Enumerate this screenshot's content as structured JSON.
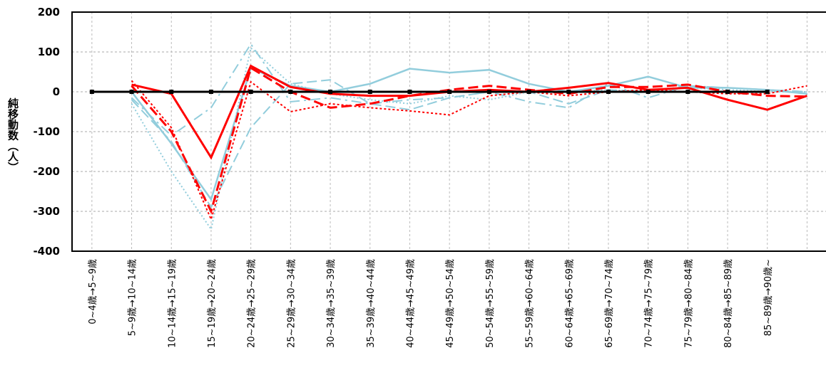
{
  "chart_data": {
    "type": "line",
    "y_label": "純移動数（人）",
    "categories": [
      "0~4歳→5~9歳",
      "5~9歳→10~14歳",
      "10~14歳→15~19歳",
      "15~19歳→20~24歳",
      "20~24歳→25~29歳",
      "25~29歳→30~34歳",
      "30~34歳→35~39歳",
      "35~39歳→40~44歳",
      "40~44歳→45~49歳",
      "45~49歳→50~54歳",
      "50~54歳→55~59歳",
      "55~59歳→60~64歳",
      "60~64歳→65~69歳",
      "65~69歳→70~74歳",
      "70~74歳→75~79歳",
      "75~79歳→80~84歳",
      "80~84歳→85~89歳",
      "85~89歳→90歳~",
      null
    ],
    "ylim": [
      -400,
      200
    ],
    "yticks": [
      -400,
      -300,
      -200,
      -100,
      0,
      100,
      200
    ],
    "grid": true,
    "series": [
      {
        "color": "#92cddc",
        "dash": "2,3",
        "width": 2,
        "values": [
          null,
          -30,
          -200,
          -345,
          110,
          20,
          -5,
          -20,
          -30,
          -10,
          -20,
          0,
          0,
          5,
          0,
          10,
          5,
          0,
          0
        ]
      },
      {
        "color": "#92cddc",
        "dash": "14,6,3,6",
        "width": 2,
        "values": [
          null,
          -15,
          -110,
          -40,
          120,
          -25,
          -15,
          -30,
          -20,
          -15,
          0,
          -25,
          -40,
          20,
          -15,
          15,
          10,
          5,
          0
        ]
      },
      {
        "color": "#92cddc",
        "dash": "14,6",
        "width": 2,
        "values": [
          null,
          -20,
          -125,
          -290,
          -90,
          20,
          30,
          -30,
          -45,
          -15,
          0,
          0,
          -30,
          5,
          0,
          15,
          10,
          5,
          0
        ]
      },
      {
        "color": "#92cddc",
        "dash": "",
        "width": 2.5,
        "values": [
          null,
          0,
          -130,
          -270,
          60,
          15,
          0,
          20,
          58,
          48,
          55,
          20,
          0,
          15,
          38,
          10,
          10,
          5,
          -5
        ]
      },
      {
        "color": "#ff0000",
        "dash": "3,3",
        "width": 2,
        "values": [
          null,
          28,
          -90,
          -320,
          25,
          -50,
          -30,
          -40,
          -48,
          -58,
          -10,
          0,
          -10,
          0,
          5,
          0,
          -5,
          -5,
          15
        ]
      },
      {
        "color": "#ff0000",
        "dash": "14,6",
        "width": 3,
        "values": [
          null,
          15,
          -100,
          -300,
          60,
          0,
          -40,
          -30,
          -10,
          5,
          15,
          5,
          -5,
          12,
          12,
          18,
          0,
          -10,
          -12
        ]
      },
      {
        "color": "#ff0000",
        "dash": "",
        "width": 3,
        "values": [
          null,
          18,
          -5,
          -165,
          65,
          12,
          -5,
          -10,
          -10,
          0,
          5,
          0,
          10,
          22,
          5,
          10,
          -20,
          -45,
          -10
        ]
      },
      {
        "color": "#000000",
        "dash": "",
        "width": 3,
        "marker": "square",
        "values": [
          0,
          0,
          0,
          0,
          0,
          0,
          0,
          0,
          0,
          0,
          0,
          0,
          0,
          0,
          0,
          0,
          0,
          0,
          null
        ]
      }
    ]
  }
}
